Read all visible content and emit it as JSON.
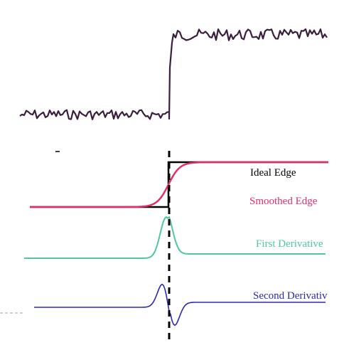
{
  "labels": {
    "ideal_edge": "Ideal Edge",
    "smoothed_edge": "Smoothed Edge",
    "first_derivative": "First Derivative",
    "second_derivative": "Second Derivativ"
  },
  "colors": {
    "noisy_signal": "#3a1f3c",
    "ideal_edge": "#000000",
    "smoothed_edge": "#e0306c",
    "first_derivative": "#4fc99c",
    "second_derivative": "#2a2ab0",
    "dashed_line": "#000000",
    "corner_dash": "#b8b8b8"
  }
}
